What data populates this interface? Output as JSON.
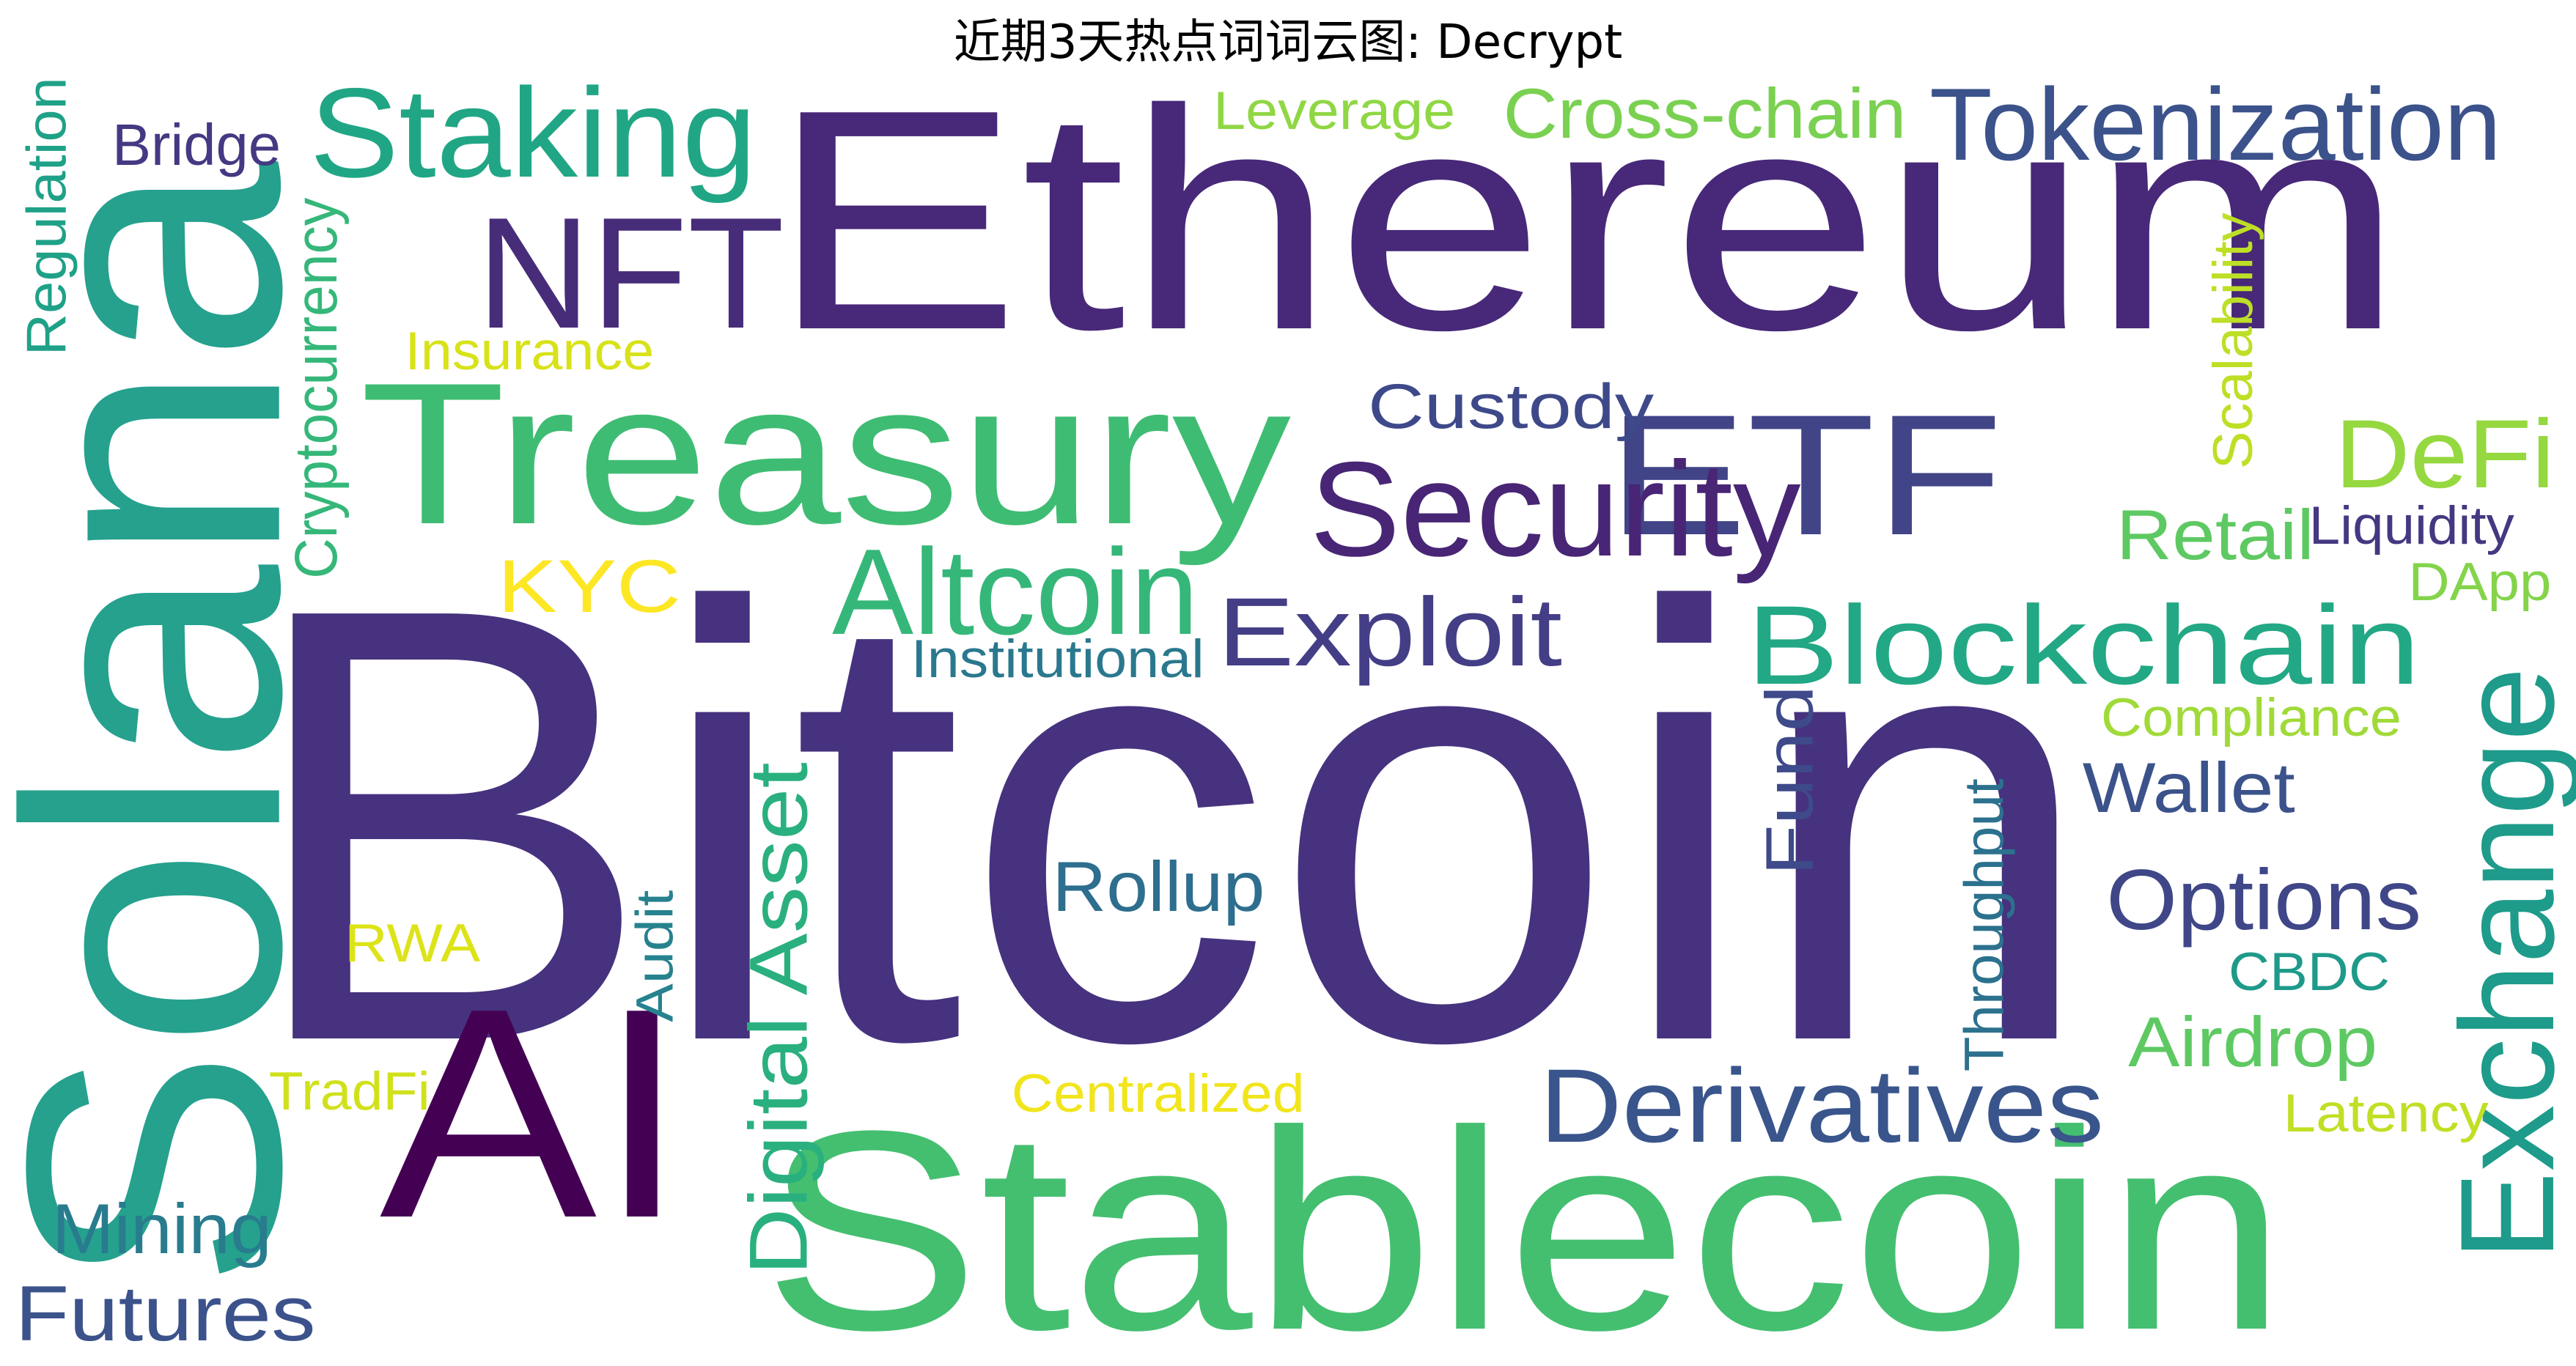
{
  "title": "近期3天热点词词云图: Decrypt",
  "words": [
    {
      "text": "Bitcoin",
      "color": "#46327e"
    },
    {
      "text": "Ethereum",
      "color": "#482878"
    },
    {
      "text": "Solana",
      "color": "#25a18e"
    },
    {
      "text": "Stablecoin",
      "color": "#44bf70"
    },
    {
      "text": "AI",
      "color": "#440154"
    },
    {
      "text": "Treasury",
      "color": "#3fbc73"
    },
    {
      "text": "ETF",
      "color": "#414487"
    },
    {
      "text": "Security",
      "color": "#482575"
    },
    {
      "text": "Staking",
      "color": "#21a685"
    },
    {
      "text": "NFT",
      "color": "#472c7a"
    },
    {
      "text": "Tokenization",
      "color": "#3b528b"
    },
    {
      "text": "Cross-chain",
      "color": "#7ad151"
    },
    {
      "text": "Leverage",
      "color": "#8fd744"
    },
    {
      "text": "Bridge",
      "color": "#443983"
    },
    {
      "text": "Regulation",
      "color": "#1fa188"
    },
    {
      "text": "Cryptocurrency",
      "color": "#35b779"
    },
    {
      "text": "Insurance",
      "color": "#d8e219"
    },
    {
      "text": "Custody",
      "color": "#3e4989"
    },
    {
      "text": "DeFi",
      "color": "#95d840"
    },
    {
      "text": "Scalability",
      "color": "#bddf26"
    },
    {
      "text": "Retail",
      "color": "#5ec962"
    },
    {
      "text": "Liquidity",
      "color": "#453781"
    },
    {
      "text": "DApp",
      "color": "#84d44b"
    },
    {
      "text": "KYC",
      "color": "#fde725"
    },
    {
      "text": "Altcoin",
      "color": "#35b779"
    },
    {
      "text": "Exploit",
      "color": "#433e85"
    },
    {
      "text": "Institutional",
      "color": "#2a788e"
    },
    {
      "text": "Blockchain",
      "color": "#22a884"
    },
    {
      "text": "Compliance",
      "color": "#a0da39"
    },
    {
      "text": "Exchange",
      "color": "#1e9b8a"
    },
    {
      "text": "Fund",
      "color": "#3e4a89"
    },
    {
      "text": "Wallet",
      "color": "#3b528b"
    },
    {
      "text": "Throughput",
      "color": "#2c718e"
    },
    {
      "text": "Digital Asset",
      "color": "#2ab07f"
    },
    {
      "text": "Rollup",
      "color": "#2e6e8e"
    },
    {
      "text": "Options",
      "color": "#3f4788"
    },
    {
      "text": "CBDC",
      "color": "#1f9a8a"
    },
    {
      "text": "Audit",
      "color": "#26828e"
    },
    {
      "text": "RWA",
      "color": "#dde318"
    },
    {
      "text": "Airdrop",
      "color": "#5ec962"
    },
    {
      "text": "Derivatives",
      "color": "#39558c"
    },
    {
      "text": "TradFi",
      "color": "#d0e11c"
    },
    {
      "text": "Centralized",
      "color": "#f1e51d"
    },
    {
      "text": "Latency",
      "color": "#c0df25"
    },
    {
      "text": "Mining",
      "color": "#287c8e"
    },
    {
      "text": "Futures",
      "color": "#3b528b"
    }
  ]
}
